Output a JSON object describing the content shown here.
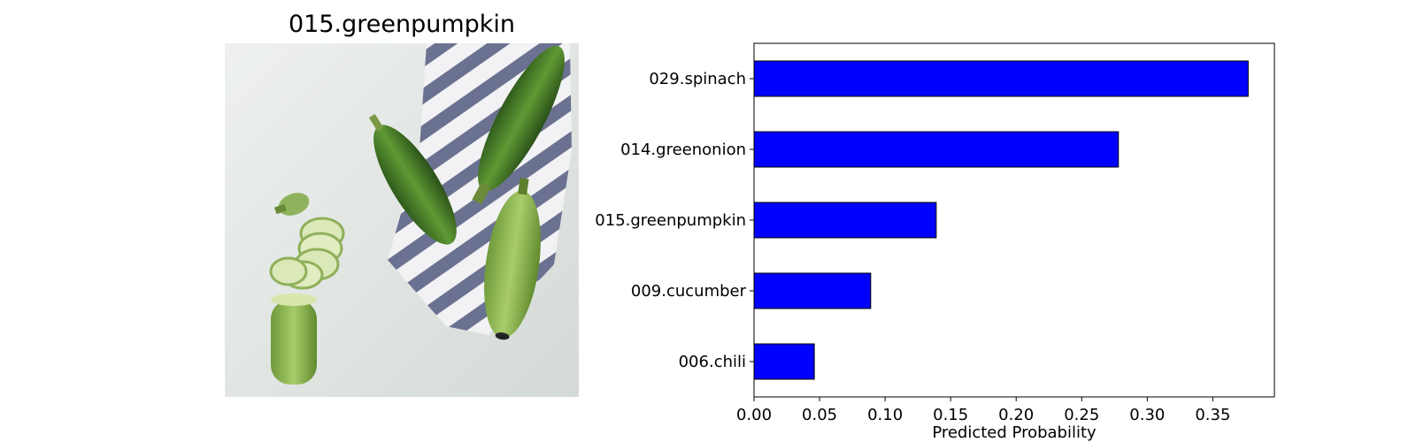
{
  "image_panel": {
    "title": "015.greenpumpkin",
    "photo_icon": "zucchini-photo"
  },
  "chart_data": {
    "type": "bar",
    "orientation": "horizontal",
    "categories": [
      "029.spinach",
      "014.greenonion",
      "015.greenpumpkin",
      "009.cucumber",
      "006.chili"
    ],
    "values": [
      0.377,
      0.278,
      0.139,
      0.089,
      0.046
    ],
    "title": "",
    "xlabel": "Predicted Probability",
    "ylabel": "",
    "xlim": [
      0,
      0.397
    ],
    "xticks": [
      0.0,
      0.05,
      0.1,
      0.15,
      0.2,
      0.25,
      0.3,
      0.35
    ],
    "xtick_labels": [
      "0.00",
      "0.05",
      "0.10",
      "0.15",
      "0.20",
      "0.25",
      "0.30",
      "0.35"
    ],
    "bar_color": "#0000ff",
    "bar_edge_color": "#000000",
    "grid": false,
    "legend": false
  }
}
